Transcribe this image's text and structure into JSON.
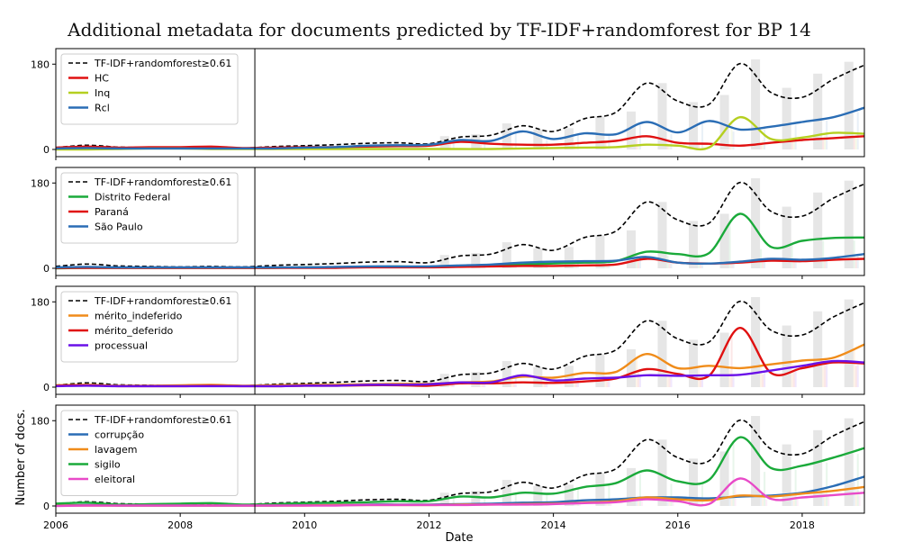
{
  "figure": {
    "title": "Additional metadata for documents predicted by TF-IDF+randomforest for BP 14",
    "xlabel": "Date",
    "ylabel": "Number of docs."
  },
  "chart_data": [
    {
      "type": "line",
      "x": [
        2006,
        2006.5,
        2007,
        2007.5,
        2008,
        2008.5,
        2009,
        2009.5,
        2010,
        2010.5,
        2011,
        2011.5,
        2012,
        2012.5,
        2013,
        2013.5,
        2014,
        2014.5,
        2015,
        2015.5,
        2016,
        2016.5,
        2017,
        2017.5,
        2018,
        2018.5,
        2019
      ],
      "series": [
        {
          "name": "TF-IDF+randomforest≥0.61",
          "color": "#000000",
          "dashed": true,
          "values": [
            4,
            9,
            5,
            4,
            3,
            4,
            3,
            6,
            8,
            10,
            13,
            14,
            12,
            26,
            30,
            50,
            38,
            65,
            78,
            140,
            102,
            95,
            181,
            120,
            110,
            148,
            178
          ]
        },
        {
          "name": "HC",
          "color": "#e01010",
          "values": [
            4,
            6,
            4,
            5,
            5,
            6,
            3,
            4,
            5,
            5,
            6,
            7,
            8,
            16,
            12,
            10,
            10,
            14,
            18,
            28,
            14,
            12,
            8,
            14,
            20,
            24,
            28
          ]
        },
        {
          "name": "Inq",
          "color": "#b5cf20",
          "values": [
            0,
            0,
            1,
            2,
            2,
            1,
            1,
            1,
            1,
            1,
            1,
            1,
            1,
            1,
            1,
            2,
            3,
            4,
            5,
            10,
            8,
            4,
            68,
            22,
            25,
            35,
            33
          ]
        },
        {
          "name": "Rcl",
          "color": "#2a6db5",
          "values": [
            2,
            3,
            2,
            2,
            2,
            2,
            2,
            2,
            4,
            5,
            8,
            9,
            10,
            20,
            18,
            38,
            22,
            34,
            32,
            58,
            36,
            60,
            42,
            48,
            58,
            68,
            88
          ]
        }
      ],
      "ylim": [
        0,
        190
      ],
      "yticks": [
        0,
        180
      ]
    },
    {
      "type": "line",
      "x": [
        2006,
        2006.5,
        2007,
        2007.5,
        2008,
        2008.5,
        2009,
        2009.5,
        2010,
        2010.5,
        2011,
        2011.5,
        2012,
        2012.5,
        2013,
        2013.5,
        2014,
        2014.5,
        2015,
        2015.5,
        2016,
        2016.5,
        2017,
        2017.5,
        2018,
        2018.5,
        2019
      ],
      "series": [
        {
          "name": "TF-IDF+randomforest≥0.61",
          "color": "#000000",
          "dashed": true,
          "values": [
            4,
            9,
            5,
            4,
            3,
            4,
            3,
            6,
            8,
            10,
            13,
            14,
            12,
            26,
            30,
            50,
            38,
            65,
            78,
            140,
            102,
            95,
            181,
            120,
            110,
            148,
            178
          ]
        },
        {
          "name": "Distrito Federal",
          "color": "#1aaa3a",
          "values": [
            0,
            1,
            1,
            1,
            1,
            1,
            1,
            1,
            2,
            2,
            3,
            4,
            3,
            5,
            6,
            8,
            10,
            12,
            15,
            35,
            30,
            32,
            115,
            45,
            58,
            64,
            65
          ]
        },
        {
          "name": "Paraná",
          "color": "#e01010",
          "values": [
            1,
            1,
            1,
            1,
            1,
            1,
            1,
            1,
            1,
            1,
            2,
            2,
            2,
            3,
            4,
            5,
            5,
            6,
            8,
            20,
            12,
            10,
            12,
            16,
            15,
            18,
            20
          ]
        },
        {
          "name": "São Paulo",
          "color": "#2a6db5",
          "values": [
            2,
            3,
            2,
            2,
            2,
            2,
            2,
            2,
            2,
            3,
            4,
            4,
            4,
            6,
            8,
            12,
            14,
            15,
            16,
            24,
            12,
            10,
            14,
            20,
            18,
            22,
            30
          ]
        }
      ],
      "ylim": [
        0,
        190
      ],
      "yticks": [
        0,
        180
      ]
    },
    {
      "type": "line",
      "x": [
        2006,
        2006.5,
        2007,
        2007.5,
        2008,
        2008.5,
        2009,
        2009.5,
        2010,
        2010.5,
        2011,
        2011.5,
        2012,
        2012.5,
        2013,
        2013.5,
        2014,
        2014.5,
        2015,
        2015.5,
        2016,
        2016.5,
        2017,
        2017.5,
        2018,
        2018.5,
        2019
      ],
      "series": [
        {
          "name": "TF-IDF+randomforest≥0.61",
          "color": "#000000",
          "dashed": true,
          "values": [
            4,
            9,
            5,
            4,
            3,
            4,
            3,
            6,
            8,
            10,
            13,
            14,
            12,
            26,
            30,
            50,
            38,
            65,
            78,
            140,
            102,
            95,
            181,
            120,
            110,
            148,
            178
          ]
        },
        {
          "name": "mérito_indeferido",
          "color": "#f08c1a",
          "values": [
            4,
            5,
            3,
            3,
            4,
            5,
            3,
            4,
            5,
            5,
            6,
            7,
            7,
            10,
            12,
            22,
            20,
            30,
            32,
            70,
            40,
            45,
            40,
            48,
            56,
            62,
            90
          ]
        },
        {
          "name": "mérito_deferido",
          "color": "#e01010",
          "values": [
            3,
            4,
            2,
            2,
            2,
            3,
            2,
            2,
            3,
            3,
            4,
            4,
            3,
            8,
            8,
            10,
            9,
            12,
            18,
            38,
            28,
            24,
            125,
            30,
            40,
            52,
            50
          ]
        },
        {
          "name": "processual",
          "color": "#6a10e8",
          "values": [
            2,
            3,
            2,
            2,
            2,
            2,
            2,
            2,
            3,
            3,
            5,
            5,
            6,
            10,
            10,
            25,
            14,
            18,
            20,
            25,
            24,
            25,
            26,
            35,
            45,
            55,
            52
          ]
        }
      ],
      "ylim": [
        0,
        190
      ],
      "yticks": [
        0,
        180
      ]
    },
    {
      "type": "line",
      "x": [
        2006,
        2006.5,
        2007,
        2007.5,
        2008,
        2008.5,
        2009,
        2009.5,
        2010,
        2010.5,
        2011,
        2011.5,
        2012,
        2012.5,
        2013,
        2013.5,
        2014,
        2014.5,
        2015,
        2015.5,
        2016,
        2016.5,
        2017,
        2017.5,
        2018,
        2018.5,
        2019
      ],
      "series": [
        {
          "name": "TF-IDF+randomforest≥0.61",
          "color": "#000000",
          "dashed": true,
          "values": [
            4,
            9,
            5,
            4,
            3,
            4,
            3,
            6,
            8,
            10,
            13,
            14,
            12,
            26,
            30,
            50,
            38,
            65,
            78,
            140,
            102,
            95,
            181,
            120,
            110,
            148,
            178
          ]
        },
        {
          "name": "corrupção",
          "color": "#2a6db5",
          "values": [
            1,
            2,
            1,
            1,
            1,
            1,
            1,
            1,
            2,
            2,
            3,
            3,
            3,
            4,
            5,
            7,
            8,
            12,
            14,
            18,
            18,
            16,
            20,
            22,
            28,
            42,
            62
          ]
        },
        {
          "name": "lavagem",
          "color": "#f08c1a",
          "values": [
            1,
            1,
            1,
            1,
            1,
            1,
            1,
            1,
            1,
            2,
            2,
            2,
            2,
            3,
            3,
            4,
            5,
            7,
            10,
            18,
            14,
            12,
            22,
            20,
            26,
            32,
            40
          ]
        },
        {
          "name": "sigilo",
          "color": "#1aaa3a",
          "values": [
            5,
            7,
            3,
            4,
            5,
            6,
            3,
            4,
            6,
            7,
            8,
            10,
            10,
            20,
            18,
            28,
            26,
            40,
            48,
            75,
            52,
            55,
            145,
            80,
            85,
            102,
            122
          ]
        },
        {
          "name": "eleitoral",
          "color": "#e84ac8",
          "values": [
            0,
            1,
            1,
            1,
            1,
            1,
            1,
            1,
            1,
            1,
            2,
            2,
            2,
            2,
            3,
            3,
            4,
            6,
            8,
            14,
            10,
            4,
            58,
            15,
            18,
            23,
            28
          ]
        }
      ],
      "ylim": [
        0,
        190
      ],
      "yticks": [
        0,
        180
      ]
    }
  ],
  "xaxis": {
    "ticks": [
      2006,
      2008,
      2010,
      2012,
      2014,
      2016,
      2018
    ],
    "xlim": [
      2006,
      2019
    ],
    "vline": 2009.2
  },
  "bars": {
    "x": [
      2012.25,
      2012.75,
      2013.25,
      2013.75,
      2014.25,
      2014.75,
      2015.25,
      2015.75,
      2016.25,
      2016.75,
      2017.25,
      2017.75,
      2018.25,
      2018.75
    ],
    "values": [
      28,
      32,
      55,
      42,
      45,
      70,
      80,
      140,
      100,
      115,
      190,
      130,
      160,
      185
    ]
  }
}
